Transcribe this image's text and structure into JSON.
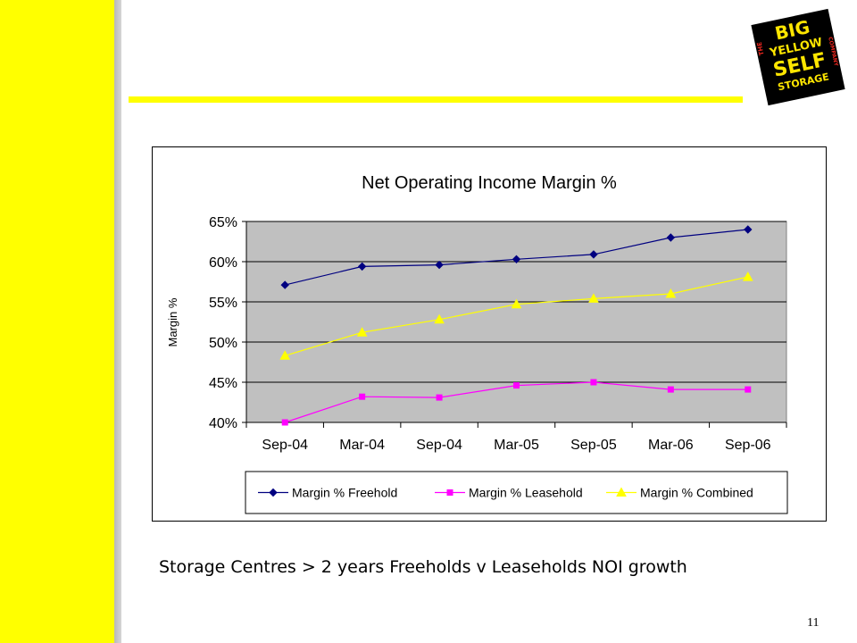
{
  "slide": {
    "caption": "Storage Centres > 2 years Freeholds v Leaseholds NOI growth",
    "page_number": "11",
    "accent_color": "#ffff00"
  },
  "logo": {
    "lines": [
      "THE",
      "BIG",
      "YELLOW",
      "SELF",
      "STORAGE",
      "COMPANY"
    ],
    "colors": {
      "background": "#000000",
      "text": "#ffe600",
      "accent": "#e8261e"
    }
  },
  "chart_data": {
    "type": "line",
    "title": "Net Operating Income Margin %",
    "ylabel": "Margin %",
    "xlabel": "",
    "categories": [
      "Sep-04",
      "Mar-04",
      "Sep-04",
      "Mar-05",
      "Sep-05",
      "Mar-06",
      "Sep-06"
    ],
    "ylim": [
      0.4,
      0.65
    ],
    "yticks": [
      "40%",
      "45%",
      "50%",
      "55%",
      "60%",
      "65%"
    ],
    "grid": true,
    "plot_background": "#c0c0c0",
    "legend_position": "bottom",
    "series": [
      {
        "name": "Margin % Freehold",
        "color": "#000080",
        "marker": "diamond",
        "values": [
          0.571,
          0.594,
          0.596,
          0.603,
          0.609,
          0.63,
          0.64
        ]
      },
      {
        "name": "Margin % Leasehold",
        "color": "#ff00ff",
        "marker": "square",
        "values": [
          0.4,
          0.432,
          0.431,
          0.446,
          0.45,
          0.441,
          0.441
        ]
      },
      {
        "name": "Margin % Combined",
        "color": "#ffff00",
        "marker": "triangle",
        "values": [
          0.483,
          0.512,
          0.528,
          0.547,
          0.554,
          0.56,
          0.581
        ]
      }
    ]
  }
}
